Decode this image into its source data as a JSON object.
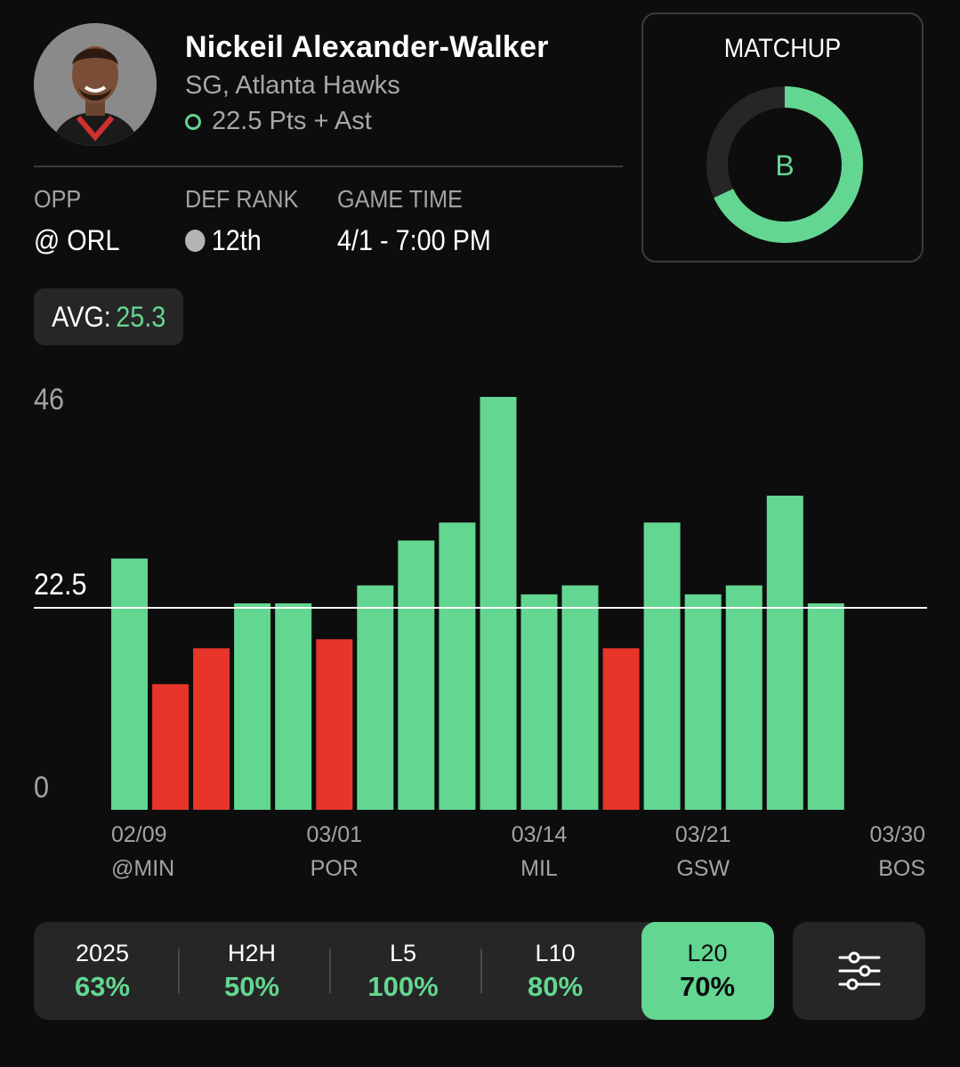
{
  "player": {
    "name": "Nickeil Alexander-Walker",
    "position_team": "SG, Atlanta Hawks",
    "prop": "22.5 Pts + Ast",
    "over_under": "O"
  },
  "info": {
    "opp_label": "OPP",
    "opp_value": "@ ORL",
    "def_rank_label": "DEF RANK",
    "def_rank_value": "12th",
    "game_time_label": "GAME TIME",
    "game_time_value": "4/1 - 7:00 PM"
  },
  "matchup": {
    "title": "MATCHUP",
    "grade": "B",
    "fill_fraction": 0.68
  },
  "avg": {
    "label": "AVG:",
    "value": "25.3"
  },
  "chart_data": {
    "type": "bar",
    "title": "",
    "xlabel": "",
    "ylabel": "",
    "ylim": [
      0,
      46
    ],
    "y_ticks": [
      "46",
      "22.5",
      "0"
    ],
    "line_value": 22.5,
    "values": [
      28,
      14,
      18,
      23,
      23,
      19,
      25,
      30,
      32,
      46,
      24,
      25,
      18,
      32,
      24,
      25,
      35,
      23
    ],
    "x_labels": [
      {
        "index": 0,
        "date": "02/09",
        "opp": "@MIN"
      },
      {
        "index": 5,
        "date": "03/01",
        "opp": "POR"
      },
      {
        "index": 10,
        "date": "03/14",
        "opp": "MIL"
      },
      {
        "index": 14,
        "date": "03/21",
        "opp": "GSW"
      },
      {
        "index": 19,
        "date": "03/30",
        "opp": "BOS"
      }
    ],
    "colors": {
      "over": "#63d691",
      "under": "#e8352a",
      "line": "#ffffff"
    }
  },
  "filters": [
    {
      "label": "2025",
      "pct": "63%",
      "active": false
    },
    {
      "label": "H2H",
      "pct": "50%",
      "active": false
    },
    {
      "label": "L5",
      "pct": "100%",
      "active": false
    },
    {
      "label": "L10",
      "pct": "80%",
      "active": false
    },
    {
      "label": "L20",
      "pct": "70%",
      "active": true
    }
  ],
  "icons": {
    "settings": "sliders-icon"
  },
  "colors": {
    "accent": "#63d691",
    "under": "#e8352a",
    "background": "#0d0d0d",
    "card": "#262626"
  }
}
